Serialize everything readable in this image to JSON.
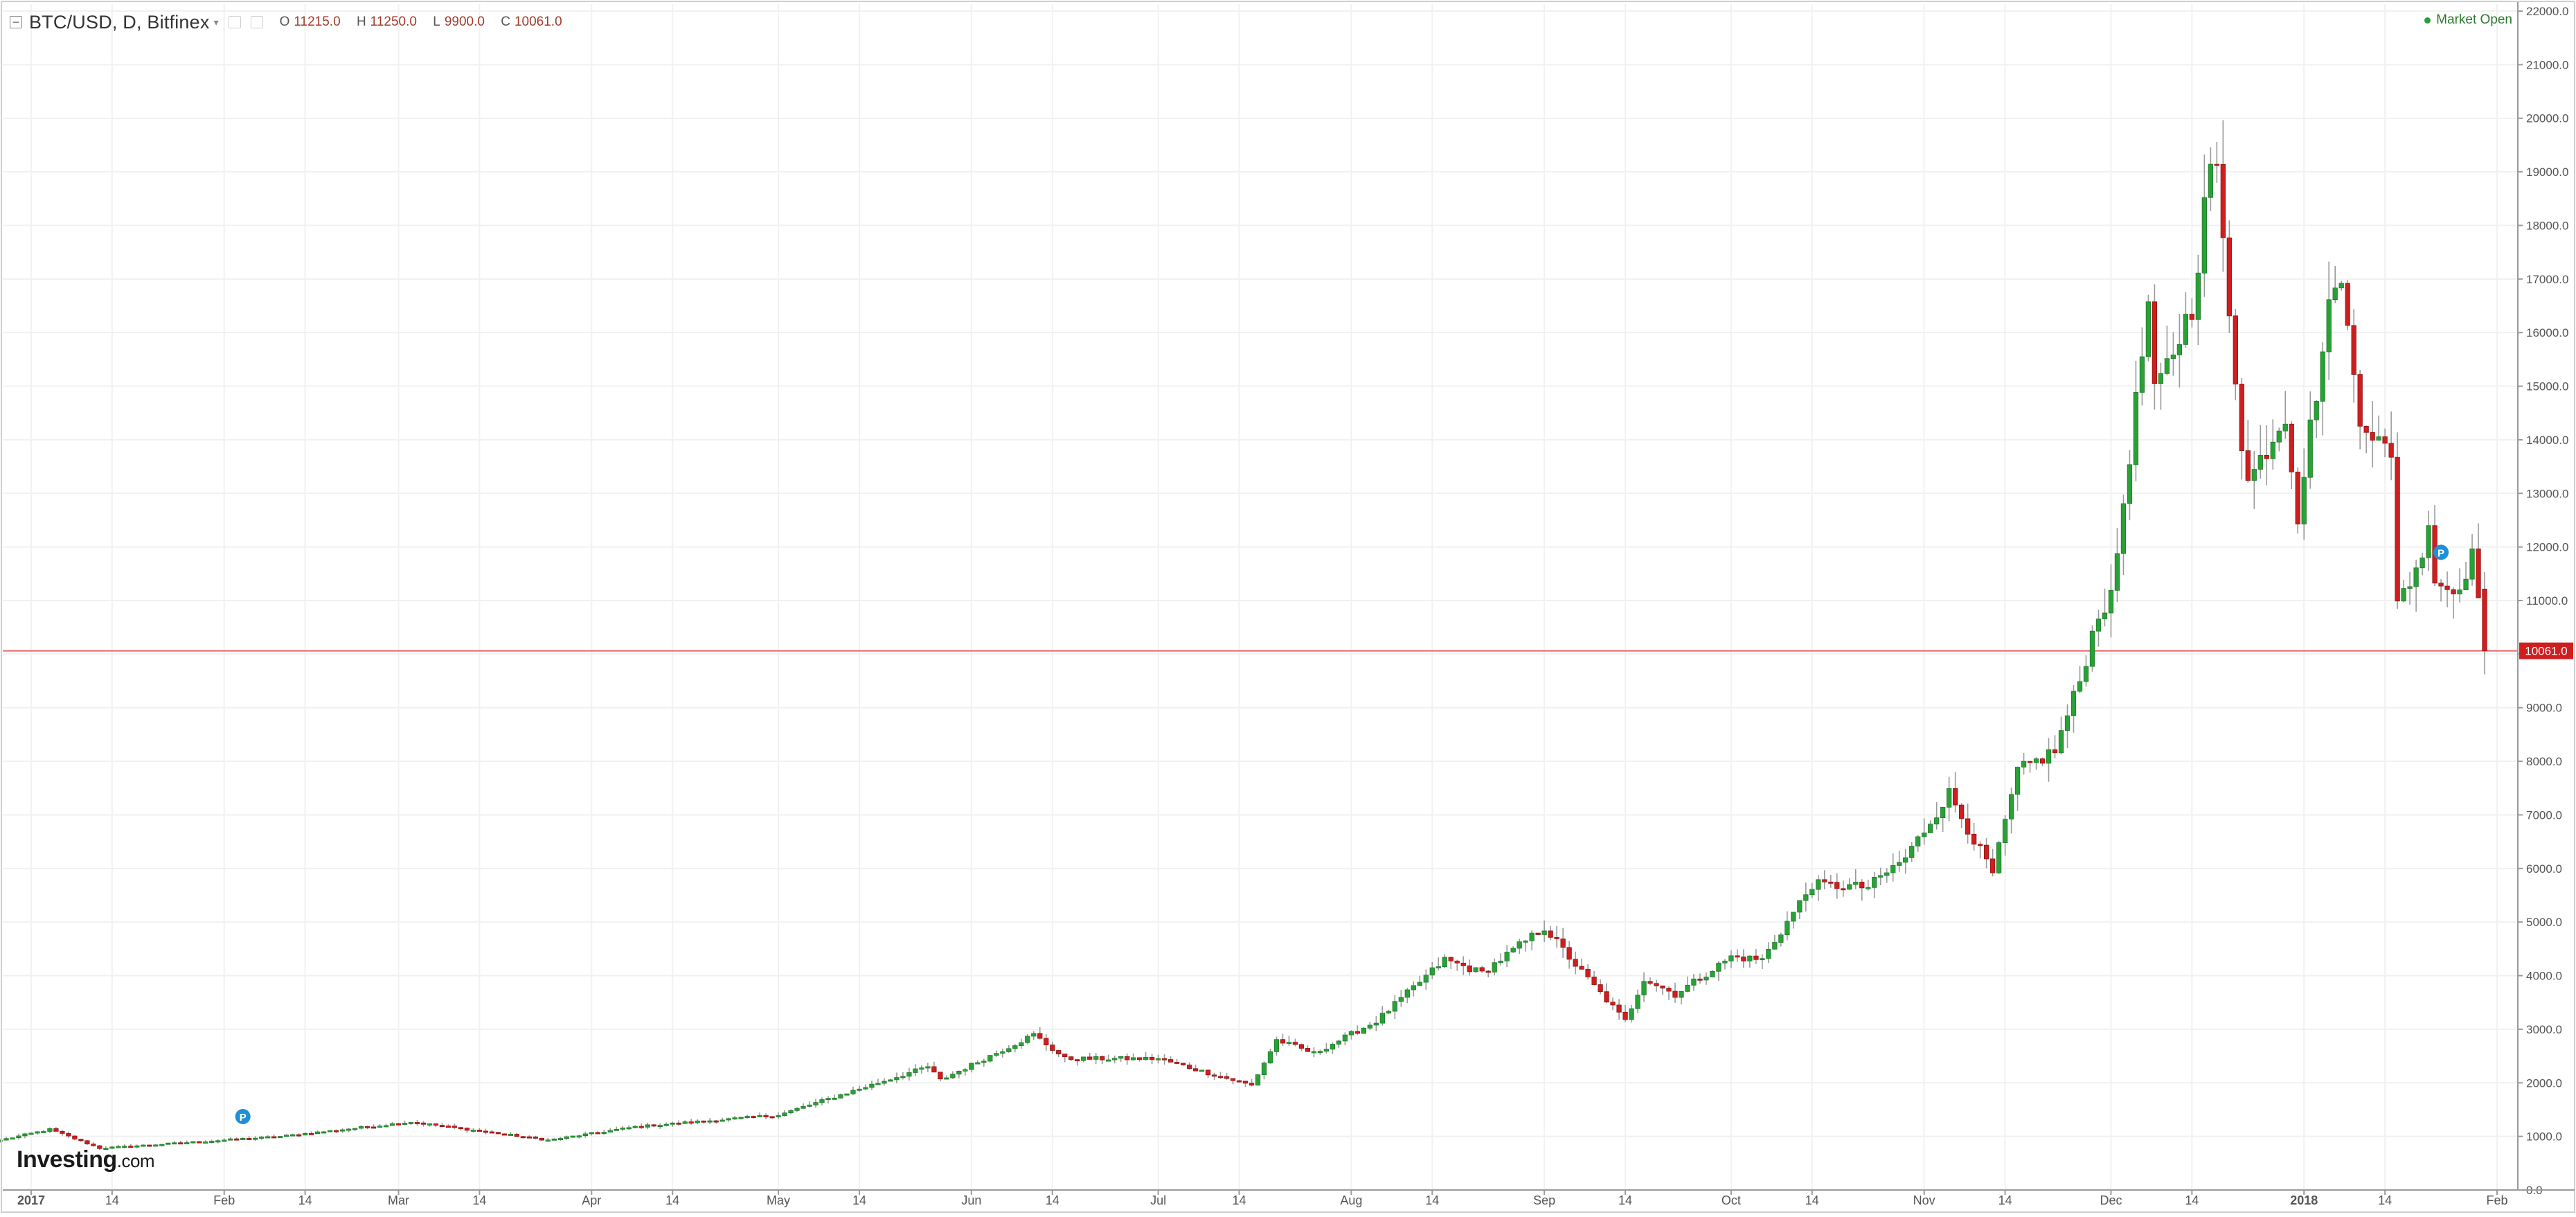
{
  "header": {
    "title": "BTC/USD, D, Bitfinex",
    "ohlc": [
      {
        "key": "O",
        "value": "11215.0"
      },
      {
        "key": "H",
        "value": "11250.0"
      },
      {
        "key": "L",
        "value": "9900.0"
      },
      {
        "key": "C",
        "value": "10061.0"
      }
    ]
  },
  "status": {
    "market_open": "Market Open"
  },
  "logo": {
    "name": "Investing",
    "suffix": ".com"
  },
  "colors": {
    "up": "#2aa137",
    "down": "#d01e1e",
    "grid": "#f1f1f1",
    "price_line": "#e86464",
    "marker": "#1f8fd6"
  },
  "chart_data": {
    "type": "candlestick",
    "title": "BTC/USD, D, Bitfinex",
    "xlabel": "",
    "ylabel": "",
    "ylim": [
      0,
      22000
    ],
    "y_ticks": [
      "0.0",
      "1000.0",
      "2000.0",
      "3000.0",
      "4000.0",
      "5000.0",
      "6000.0",
      "7000.0",
      "8000.0",
      "9000.0",
      "10000.0",
      "11000.0",
      "12000.0",
      "13000.0",
      "14000.0",
      "15000.0",
      "16000.0",
      "17000.0",
      "18000.0",
      "19000.0",
      "20000.0",
      "21000.0",
      "22000.0"
    ],
    "x_range": [
      "2016-12-27",
      "2018-02-01"
    ],
    "x_ticks": [
      {
        "date": "2017-01-01",
        "label": "2017",
        "bold": true
      },
      {
        "date": "2017-01-14",
        "label": "14"
      },
      {
        "date": "2017-02-01",
        "label": "Feb"
      },
      {
        "date": "2017-02-14",
        "label": "14"
      },
      {
        "date": "2017-03-01",
        "label": "Mar"
      },
      {
        "date": "2017-03-14",
        "label": "14"
      },
      {
        "date": "2017-04-01",
        "label": "Apr"
      },
      {
        "date": "2017-04-14",
        "label": "14"
      },
      {
        "date": "2017-05-01",
        "label": "May"
      },
      {
        "date": "2017-05-14",
        "label": "14"
      },
      {
        "date": "2017-06-01",
        "label": "Jun"
      },
      {
        "date": "2017-06-14",
        "label": "14"
      },
      {
        "date": "2017-07-01",
        "label": "Jul"
      },
      {
        "date": "2017-07-14",
        "label": "14"
      },
      {
        "date": "2017-08-01",
        "label": "Aug"
      },
      {
        "date": "2017-08-14",
        "label": "14"
      },
      {
        "date": "2017-09-01",
        "label": "Sep"
      },
      {
        "date": "2017-09-14",
        "label": "14"
      },
      {
        "date": "2017-10-01",
        "label": "Oct"
      },
      {
        "date": "2017-10-14",
        "label": "14"
      },
      {
        "date": "2017-11-01",
        "label": "Nov"
      },
      {
        "date": "2017-11-14",
        "label": "14"
      },
      {
        "date": "2017-12-01",
        "label": "Dec"
      },
      {
        "date": "2017-12-14",
        "label": "14"
      },
      {
        "date": "2018-01-01",
        "label": "2018",
        "bold": true
      },
      {
        "date": "2018-01-14",
        "label": "14"
      },
      {
        "date": "2018-02-01",
        "label": "Feb"
      }
    ],
    "current_price": {
      "value": 10061.0,
      "label": "10061.0"
    },
    "markers": [
      {
        "date": "2017-02-04",
        "value": 1370,
        "label": "P"
      },
      {
        "date": "2018-01-23",
        "value": 11900,
        "label": "P"
      }
    ],
    "anchors": [
      [
        "2016-12-27",
        930
      ],
      [
        "2017-01-04",
        1130
      ],
      [
        "2017-01-12",
        780
      ],
      [
        "2017-02-10",
        1000
      ],
      [
        "2017-03-03",
        1270
      ],
      [
        "2017-03-18",
        1040
      ],
      [
        "2017-03-25",
        930
      ],
      [
        "2017-04-08",
        1180
      ],
      [
        "2017-05-01",
        1400
      ],
      [
        "2017-05-25",
        2300
      ],
      [
        "2017-05-27",
        2050
      ],
      [
        "2017-06-11",
        2900
      ],
      [
        "2017-06-16",
        2450
      ],
      [
        "2017-07-01",
        2450
      ],
      [
        "2017-07-16",
        1950
      ],
      [
        "2017-07-20",
        2800
      ],
      [
        "2017-07-26",
        2550
      ],
      [
        "2017-08-05",
        3150
      ],
      [
        "2017-08-16",
        4300
      ],
      [
        "2017-08-22",
        4050
      ],
      [
        "2017-09-01",
        4900
      ],
      [
        "2017-09-06",
        4200
      ],
      [
        "2017-09-14",
        3150
      ],
      [
        "2017-09-17",
        3950
      ],
      [
        "2017-09-22",
        3650
      ],
      [
        "2017-10-01",
        4350
      ],
      [
        "2017-10-06",
        4300
      ],
      [
        "2017-10-14",
        5700
      ],
      [
        "2017-10-23",
        5650
      ],
      [
        "2017-10-29",
        6200
      ],
      [
        "2017-11-05",
        7400
      ],
      [
        "2017-11-12",
        5900
      ],
      [
        "2017-11-16",
        7800
      ],
      [
        "2017-11-22",
        8200
      ],
      [
        "2017-11-26",
        9500
      ],
      [
        "2017-11-29",
        10800
      ],
      [
        "2017-12-01",
        11000
      ],
      [
        "2017-12-07",
        16500
      ],
      [
        "2017-12-08",
        14800
      ],
      [
        "2017-12-14",
        16500
      ],
      [
        "2017-12-17",
        19200
      ],
      [
        "2017-12-18",
        18900
      ],
      [
        "2017-12-22",
        14000
      ],
      [
        "2017-12-23",
        13200
      ],
      [
        "2017-12-29",
        14500
      ],
      [
        "2017-12-31",
        12600
      ],
      [
        "2018-01-02",
        14200
      ],
      [
        "2018-01-06",
        17100
      ],
      [
        "2018-01-07",
        16800
      ],
      [
        "2018-01-10",
        14500
      ],
      [
        "2018-01-15",
        13600
      ],
      [
        "2018-01-16",
        11100
      ],
      [
        "2018-01-19",
        11500
      ],
      [
        "2018-01-21",
        12500
      ],
      [
        "2018-01-22",
        11400
      ],
      [
        "2018-01-25",
        11150
      ],
      [
        "2018-01-28",
        11800
      ],
      [
        "2018-01-29",
        11215
      ],
      [
        "2018-01-30",
        10061
      ]
    ]
  }
}
